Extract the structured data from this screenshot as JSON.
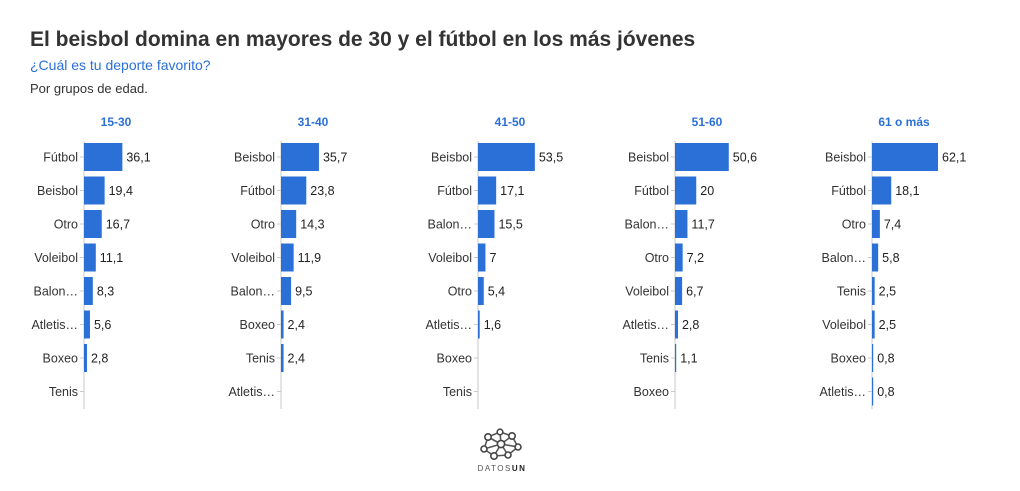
{
  "title": "El beisbol domina en mayores de 30 y el fútbol en los más jóvenes",
  "subtitle": "¿Cuál es tu deporte favorito?",
  "note": "Por grupos de edad.",
  "colors": {
    "bar": "#2b70d6",
    "group_title": "#2b70d6",
    "text": "#333333",
    "axis": "#c8c8c8"
  },
  "logo": {
    "name": "DATOSUN",
    "light": "DATOS",
    "bold": "UN"
  },
  "chart_data": [
    {
      "type": "bar",
      "orientation": "horizontal",
      "title": "15-30",
      "xlim": [
        0,
        62.1
      ],
      "categories": [
        "Fútbol",
        "Beisbol",
        "Otro",
        "Voleibol",
        "Balon…",
        "Atletis…",
        "Boxeo",
        "Tenis"
      ],
      "values": [
        36.1,
        19.4,
        16.7,
        11.1,
        8.3,
        5.6,
        2.8,
        0
      ],
      "labels": [
        "36,1",
        "19,4",
        "16,7",
        "11,1",
        "8,3",
        "5,6",
        "2,8",
        ""
      ]
    },
    {
      "type": "bar",
      "orientation": "horizontal",
      "title": "31-40",
      "xlim": [
        0,
        62.1
      ],
      "categories": [
        "Beisbol",
        "Fútbol",
        "Otro",
        "Voleibol",
        "Balon…",
        "Boxeo",
        "Tenis",
        "Atletis…"
      ],
      "values": [
        35.7,
        23.8,
        14.3,
        11.9,
        9.5,
        2.4,
        2.4,
        0
      ],
      "labels": [
        "35,7",
        "23,8",
        "14,3",
        "11,9",
        "9,5",
        "2,4",
        "2,4",
        ""
      ]
    },
    {
      "type": "bar",
      "orientation": "horizontal",
      "title": "41-50",
      "xlim": [
        0,
        62.1
      ],
      "categories": [
        "Beisbol",
        "Fútbol",
        "Balon…",
        "Voleibol",
        "Otro",
        "Atletis…",
        "Boxeo",
        "Tenis"
      ],
      "values": [
        53.5,
        17.1,
        15.5,
        7,
        5.4,
        1.6,
        0,
        0
      ],
      "labels": [
        "53,5",
        "17,1",
        "15,5",
        "7",
        "5,4",
        "1,6",
        "",
        ""
      ]
    },
    {
      "type": "bar",
      "orientation": "horizontal",
      "title": "51-60",
      "xlim": [
        0,
        62.1
      ],
      "categories": [
        "Beisbol",
        "Fútbol",
        "Balon…",
        "Otro",
        "Voleibol",
        "Atletis…",
        "Tenis",
        "Boxeo"
      ],
      "values": [
        50.6,
        20,
        11.7,
        7.2,
        6.7,
        2.8,
        1.1,
        0
      ],
      "labels": [
        "50,6",
        "20",
        "11,7",
        "7,2",
        "6,7",
        "2,8",
        "1,1",
        ""
      ]
    },
    {
      "type": "bar",
      "orientation": "horizontal",
      "title": "61 o más",
      "xlim": [
        0,
        62.1
      ],
      "categories": [
        "Beisbol",
        "Fútbol",
        "Otro",
        "Balon…",
        "Tenis",
        "Voleibol",
        "Boxeo",
        "Atletis…"
      ],
      "values": [
        62.1,
        18.1,
        7.4,
        5.8,
        2.5,
        2.5,
        0.8,
        0.8
      ],
      "labels": [
        "62,1",
        "18,1",
        "7,4",
        "5,8",
        "2,5",
        "2,5",
        "0,8",
        "0,8"
      ]
    }
  ]
}
